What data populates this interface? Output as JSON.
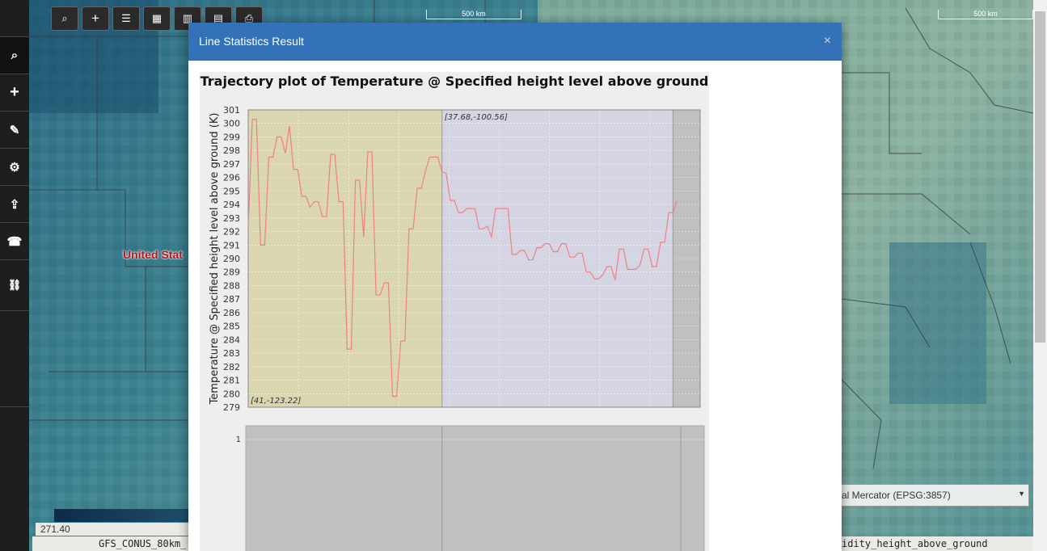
{
  "toolbar": {
    "items": [
      {
        "icon": "search-icon",
        "glyph": "🔍"
      },
      {
        "icon": "plus-icon",
        "glyph": "+"
      },
      {
        "icon": "list-icon",
        "glyph": "☰"
      },
      {
        "icon": "film-icon",
        "glyph": "▦"
      },
      {
        "icon": "bar-chart-icon",
        "glyph": "▥"
      },
      {
        "icon": "calculator-icon",
        "glyph": "▤"
      },
      {
        "icon": "print-icon",
        "glyph": "⎙"
      }
    ]
  },
  "sidebar": {
    "items": [
      {
        "icon": "search-icon",
        "glyph": "⌕"
      },
      {
        "icon": "plus-icon",
        "glyph": "+"
      },
      {
        "icon": "pencil-icon",
        "glyph": "✎"
      },
      {
        "icon": "gear-icon",
        "glyph": "⚙"
      },
      {
        "icon": "share-icon",
        "glyph": "⇪"
      },
      {
        "icon": "phone-icon",
        "glyph": "☎"
      },
      {
        "icon": "link-icon",
        "glyph": "🔗"
      }
    ]
  },
  "map": {
    "scale_left": "500 km",
    "scale_right": "500 km",
    "country_label": "United Stat",
    "legend_min": "271.40",
    "layer_left": "GFS_CONUS_80km_",
    "layer_right": "idity_height_above_ground",
    "projection": "al Mercator (EPSG:3857)"
  },
  "modal": {
    "title": "Line Statistics Result",
    "close": "×"
  },
  "chart_data": {
    "type": "line",
    "title": "Trajectory plot of Temperature @ Specified height level above ground",
    "ylabel": "Temperature @ Specified height level above ground (K)",
    "xlabel": "",
    "ylim": [
      279,
      301
    ],
    "yticks": [
      279,
      280,
      281,
      282,
      283,
      284,
      285,
      286,
      287,
      288,
      289,
      290,
      291,
      292,
      293,
      294,
      295,
      296,
      297,
      298,
      299,
      300,
      301
    ],
    "annotations": [
      "[41,-123.22]",
      "[37.68,-100.56]"
    ],
    "colors": {
      "line": "#f08080",
      "segment1": "#d9d6b0",
      "segment2": "#d4d4e3",
      "segment3": "#c0c0c0"
    },
    "series": [
      {
        "values": [
          292.3,
          300.3,
          300.3,
          291,
          291,
          297.5,
          297.5,
          299,
          299,
          297.8,
          299.8,
          296.6,
          296.6,
          294.6,
          294.6,
          293.8,
          294.2,
          294.2,
          293.1,
          293.1,
          297.7,
          297.7,
          294.2,
          294.2,
          283.3,
          283.3,
          295.8,
          295.8,
          291.6,
          297.9,
          297.9,
          287.3,
          287.3,
          288.2,
          288.2,
          279.8,
          279.8,
          283.9,
          283.9,
          292.2,
          292.2,
          295.2,
          295.2,
          296.5,
          297.5,
          297.5,
          297.5,
          296.4,
          296.3,
          294.3,
          294.3,
          293.4,
          293.4,
          293.7,
          293.7,
          293.7,
          292.2,
          292.2,
          292.4,
          291.6,
          293.7,
          293.7,
          293.7,
          293.7,
          290.3,
          290.3,
          290.6,
          290.6,
          289.9,
          289.9,
          290.8,
          290.8,
          291.1,
          291.1,
          290.5,
          290.5,
          291.1,
          291.1,
          290.1,
          290.1,
          290.4,
          290.4,
          289,
          289,
          288.5,
          288.5,
          288.8,
          289.4,
          289.4,
          288.4,
          290.7,
          290.7,
          289.2,
          289.2,
          289.2,
          289.5,
          290.7,
          290.7,
          289.4,
          289.4,
          291.2,
          291.2,
          293.4,
          293.4,
          294.3
        ]
      }
    ],
    "sub_chart": {
      "yticks": [
        1
      ]
    }
  }
}
